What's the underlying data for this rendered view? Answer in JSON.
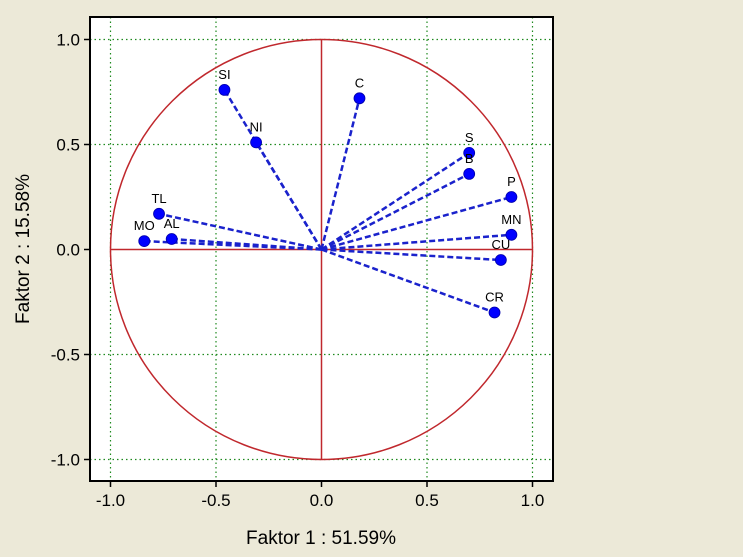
{
  "chart_data": {
    "type": "scatter",
    "subtype": "factor-loadings circle plot",
    "title": "",
    "xlabel": "Faktor 1 : 51.59%",
    "ylabel": "Faktor 2 : 15.58%",
    "xlim": [
      -1.1,
      1.1
    ],
    "ylim": [
      -1.1,
      1.1
    ],
    "xticks": [
      -1.0,
      -0.5,
      0.0,
      0.5,
      1.0
    ],
    "yticks": [
      -1.0,
      -0.5,
      0.0,
      0.5,
      1.0
    ],
    "xtick_labels": [
      "-1.0",
      "-0.5",
      "0.0",
      "0.5",
      "1.0"
    ],
    "ytick_labels": [
      "-1.0",
      "-0.5",
      "0.0",
      "0.5",
      "1.0"
    ],
    "grid": true,
    "unit_circle": true,
    "points": [
      {
        "label": "SI",
        "x": -0.46,
        "y": 0.76
      },
      {
        "label": "C",
        "x": 0.18,
        "y": 0.72
      },
      {
        "label": "NI",
        "x": -0.31,
        "y": 0.51
      },
      {
        "label": "S",
        "x": 0.7,
        "y": 0.46
      },
      {
        "label": "B",
        "x": 0.7,
        "y": 0.36
      },
      {
        "label": "P",
        "x": 0.9,
        "y": 0.25
      },
      {
        "label": "TL",
        "x": -0.77,
        "y": 0.17
      },
      {
        "label": "MO",
        "x": -0.84,
        "y": 0.04
      },
      {
        "label": "AL",
        "x": -0.71,
        "y": 0.05
      },
      {
        "label": "MN",
        "x": 0.9,
        "y": 0.07
      },
      {
        "label": "CU",
        "x": 0.85,
        "y": -0.05
      },
      {
        "label": "CR",
        "x": 0.82,
        "y": -0.3
      }
    ]
  },
  "colors": {
    "background": "#ece9d8",
    "plot_background": "#ffffff",
    "circle": "#c0282d",
    "axes_lines": "#c0282d",
    "vectors": "#1a22cc",
    "markers": "#0000ff",
    "grid": "#1f8a1f"
  }
}
